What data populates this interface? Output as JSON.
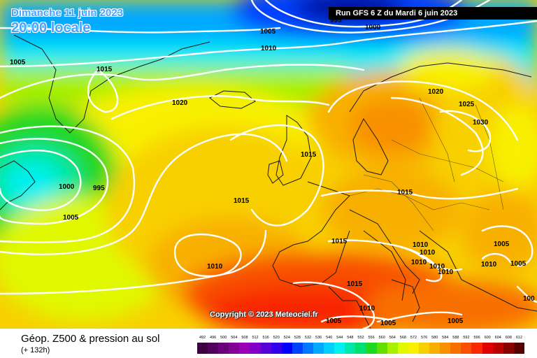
{
  "header": {
    "date": "Dimanche 11 juin 2023",
    "time": "20:00 locale",
    "run": "Run GFS 6 Z du Mardi 6 juin 2023"
  },
  "copyright": "Copyright © 2023 Meteociel.fr",
  "footer": {
    "title": "Géop. Z500 & pression au sol",
    "lead": "(+ 132h)"
  },
  "legend": {
    "values": [
      "492",
      "496",
      "500",
      "504",
      "508",
      "512",
      "516",
      "520",
      "524",
      "528",
      "532",
      "536",
      "540",
      "544",
      "548",
      "552",
      "556",
      "560",
      "564",
      "568",
      "572",
      "576",
      "580",
      "584",
      "588",
      "592",
      "596",
      "600",
      "604",
      "608",
      "612"
    ],
    "colors": [
      "#3a0040",
      "#52005e",
      "#6a007a",
      "#820096",
      "#9a00b6",
      "#8000c8",
      "#5a00d8",
      "#3000ea",
      "#0000ff",
      "#0040ff",
      "#0078ff",
      "#00a8ff",
      "#00d0ff",
      "#00f0f0",
      "#00e8a8",
      "#00e070",
      "#20d820",
      "#60e000",
      "#a8f000",
      "#e0f800",
      "#f8f000",
      "#f8d000",
      "#f8b000",
      "#f89000",
      "#f87000",
      "#f85000",
      "#f82800",
      "#e00000",
      "#b80000",
      "#880000",
      "#580000"
    ]
  },
  "isobars": [
    {
      "label": "995"
    },
    {
      "label": "1000"
    },
    {
      "label": "1005"
    },
    {
      "label": "1010"
    },
    {
      "label": "1005"
    },
    {
      "label": "1015"
    },
    {
      "label": "1020"
    },
    {
      "label": "1000"
    },
    {
      "label": "995"
    },
    {
      "label": "1005"
    },
    {
      "label": "1015"
    },
    {
      "label": "1010"
    },
    {
      "label": "1015"
    },
    {
      "label": "1020"
    },
    {
      "label": "1025"
    },
    {
      "label": "1030"
    },
    {
      "label": "1015"
    },
    {
      "label": "1015"
    },
    {
      "label": "1015"
    },
    {
      "label": "1010"
    },
    {
      "label": "1010"
    },
    {
      "label": "1010"
    },
    {
      "label": "1010"
    },
    {
      "label": "1010"
    },
    {
      "label": "1005"
    },
    {
      "label": "1010"
    },
    {
      "label": "1005"
    },
    {
      "label": "1005"
    },
    {
      "label": "1005"
    },
    {
      "label": "1010"
    },
    {
      "label": "1005"
    },
    {
      "label": "100"
    }
  ]
}
